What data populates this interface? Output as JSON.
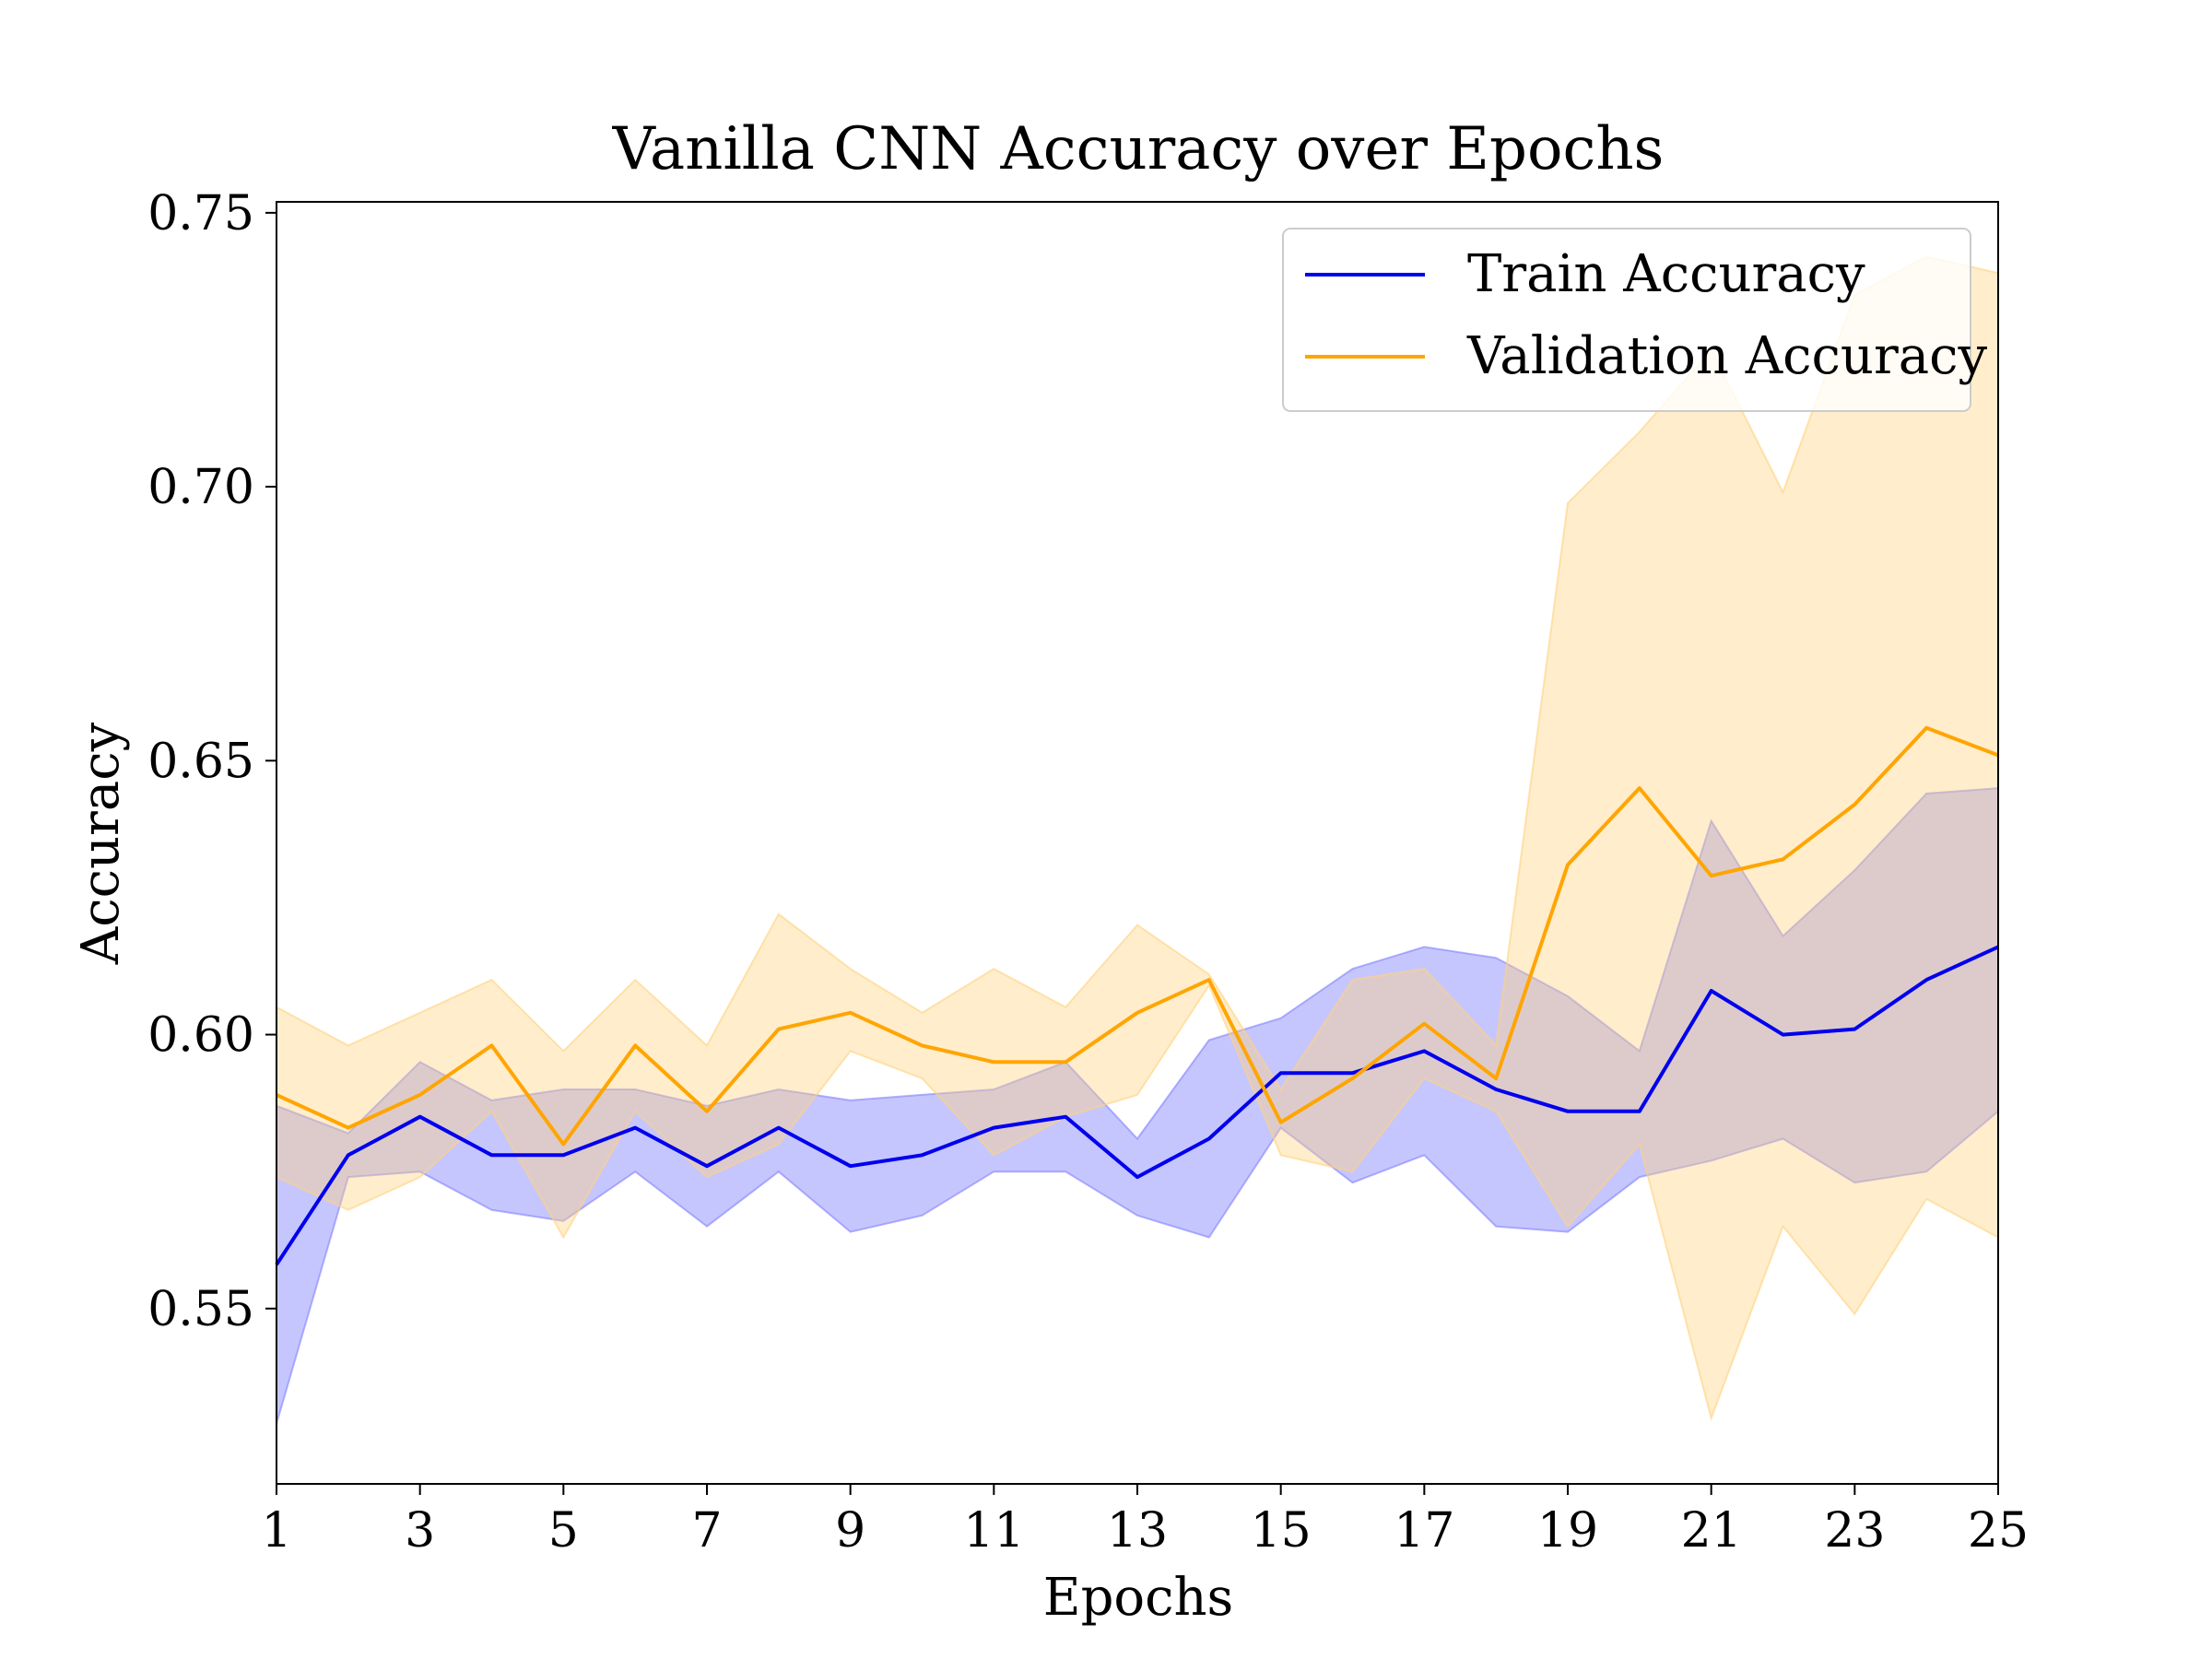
{
  "chart_data": {
    "type": "line",
    "title": "Vanilla CNN Accuracy over Epochs",
    "xlabel": "Epochs",
    "ylabel": "Accuracy",
    "xlim": [
      1,
      25
    ],
    "ylim": [
      0.518,
      0.752
    ],
    "xticks": [
      1,
      3,
      5,
      7,
      9,
      11,
      13,
      15,
      17,
      19,
      21,
      23,
      25
    ],
    "xtick_labels": [
      "1",
      "3",
      "5",
      "7",
      "9",
      "11",
      "13",
      "15",
      "17",
      "19",
      "21",
      "23",
      "25"
    ],
    "yticks": [
      0.55,
      0.6,
      0.65,
      0.7,
      0.75
    ],
    "ytick_labels": [
      "0.55",
      "0.60",
      "0.65",
      "0.70",
      "0.75"
    ],
    "grid": false,
    "legend_position": "top-right",
    "x": [
      1,
      2,
      3,
      4,
      5,
      6,
      7,
      8,
      9,
      10,
      11,
      12,
      13,
      14,
      15,
      16,
      17,
      18,
      19,
      20,
      21,
      22,
      23,
      24,
      25
    ],
    "series": [
      {
        "name": "Train Accuracy",
        "color": "#0000ee",
        "band_color": "#8080ff",
        "values": [
          0.558,
          0.578,
          0.585,
          0.578,
          0.578,
          0.583,
          0.576,
          0.583,
          0.576,
          0.578,
          0.583,
          0.585,
          0.574,
          0.581,
          0.593,
          0.593,
          0.597,
          0.59,
          0.586,
          0.586,
          0.608,
          0.6,
          0.601,
          0.61,
          0.616
        ],
        "upper": [
          0.587,
          0.582,
          0.595,
          0.588,
          0.59,
          0.59,
          0.587,
          0.59,
          0.588,
          0.589,
          0.59,
          0.595,
          0.581,
          0.599,
          0.603,
          0.612,
          0.616,
          0.614,
          0.607,
          0.597,
          0.639,
          0.618,
          0.63,
          0.644,
          0.645
        ],
        "lower": [
          0.529,
          0.574,
          0.575,
          0.568,
          0.566,
          0.575,
          0.565,
          0.575,
          0.564,
          0.567,
          0.575,
          0.575,
          0.567,
          0.563,
          0.583,
          0.573,
          0.578,
          0.565,
          0.564,
          0.574,
          0.577,
          0.581,
          0.573,
          0.575,
          0.586
        ]
      },
      {
        "name": "Validation Accuracy",
        "color": "#ffa500",
        "band_color": "#ffd27f",
        "values": [
          0.589,
          0.583,
          0.589,
          0.598,
          0.58,
          0.598,
          0.586,
          0.601,
          0.604,
          0.598,
          0.595,
          0.595,
          0.604,
          0.61,
          0.584,
          0.592,
          0.602,
          0.592,
          0.631,
          0.645,
          0.629,
          0.632,
          0.642,
          0.656,
          0.651
        ],
        "upper": [
          0.605,
          0.598,
          0.604,
          0.61,
          0.597,
          0.61,
          0.598,
          0.622,
          0.612,
          0.604,
          0.612,
          0.605,
          0.62,
          0.611,
          0.59,
          0.61,
          0.612,
          0.598,
          0.697,
          0.71,
          0.725,
          0.699,
          0.735,
          0.742,
          0.739
        ],
        "lower": [
          0.574,
          0.568,
          0.574,
          0.586,
          0.563,
          0.586,
          0.574,
          0.58,
          0.597,
          0.592,
          0.578,
          0.585,
          0.589,
          0.609,
          0.578,
          0.575,
          0.592,
          0.586,
          0.565,
          0.58,
          0.53,
          0.565,
          0.549,
          0.57,
          0.563
        ]
      }
    ]
  }
}
